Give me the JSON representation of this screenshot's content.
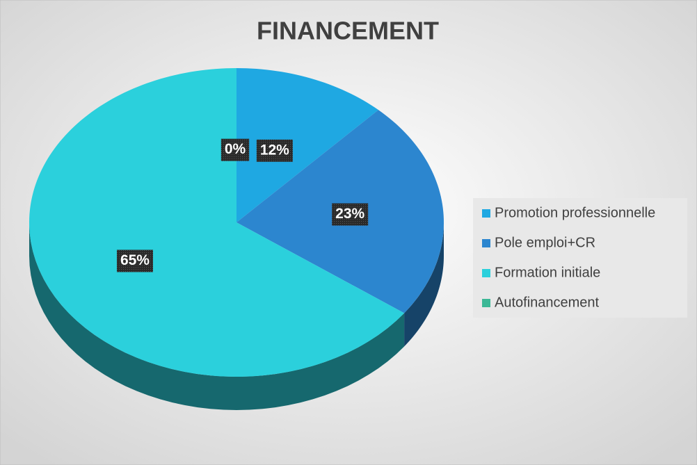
{
  "chart_data": {
    "type": "pie",
    "title": "FINANCEMENT",
    "categories": [
      "Promotion professionnelle",
      "Pole emploi+CR",
      "Formation initiale",
      "Autofinancement"
    ],
    "values": [
      12,
      23,
      65,
      0
    ],
    "value_labels": [
      "12%",
      "23%",
      "65%",
      "0%"
    ],
    "colors": [
      "#1fa8e2",
      "#2c86cf",
      "#2bd0dc",
      "#3bb896"
    ],
    "legend": "right"
  }
}
